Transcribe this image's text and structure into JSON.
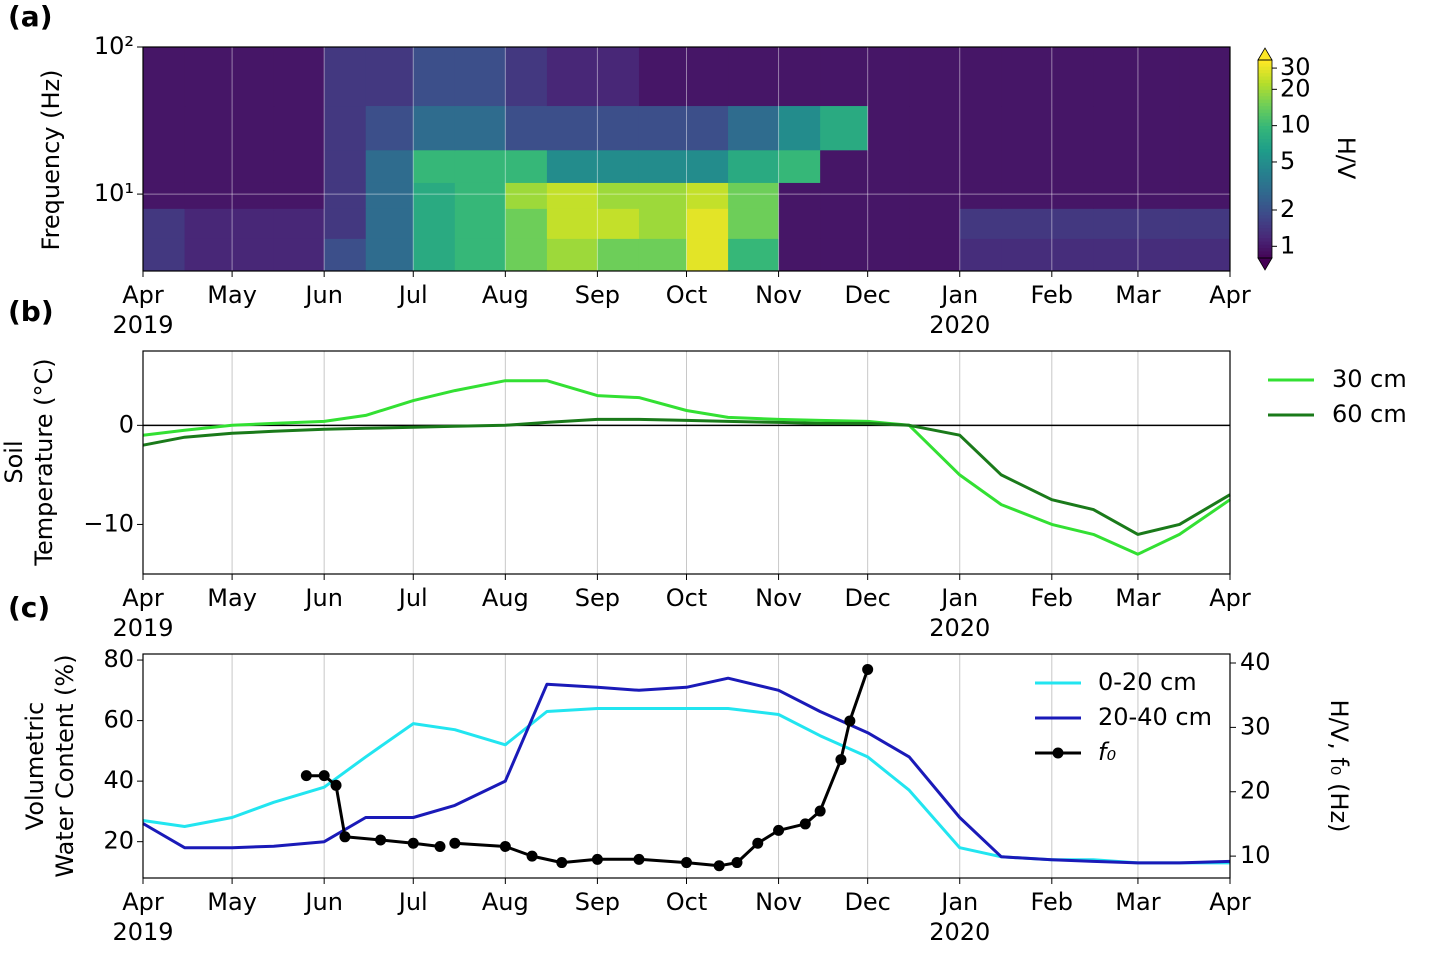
{
  "chart_data": [
    {
      "type": "heatmap",
      "panel_label": "(a)",
      "ylabel": "Frequency (Hz)",
      "xlim": [
        "2019-04-01",
        "2020-04-01"
      ],
      "xticks": [
        {
          "value": "2019-04-01",
          "label": "Apr"
        },
        {
          "value": "2019-05-01",
          "label": "May"
        },
        {
          "value": "2019-06-01",
          "label": "Jun"
        },
        {
          "value": "2019-07-01",
          "label": "Jul"
        },
        {
          "value": "2019-08-01",
          "label": "Aug"
        },
        {
          "value": "2019-09-01",
          "label": "Sep"
        },
        {
          "value": "2019-10-01",
          "label": "Oct"
        },
        {
          "value": "2019-11-01",
          "label": "Nov"
        },
        {
          "value": "2019-12-01",
          "label": "Dec"
        },
        {
          "value": "2020-01-01",
          "label": "Jan"
        },
        {
          "value": "2020-02-01",
          "label": "Feb"
        },
        {
          "value": "2020-03-01",
          "label": "Mar"
        },
        {
          "value": "2020-04-01",
          "label": "Apr"
        }
      ],
      "xtick_years": [
        {
          "value": "2019-04-01",
          "label": "2019"
        },
        {
          "value": "2020-01-01",
          "label": "2020"
        }
      ],
      "ylog": true,
      "ylim": [
        3,
        100
      ],
      "yticks": [
        {
          "value": 10,
          "label": "10¹"
        },
        {
          "value": 100,
          "label": "10²"
        }
      ],
      "grid": "both",
      "x_edges": [
        "2019-04-01",
        "2019-04-15",
        "2019-05-01",
        "2019-05-15",
        "2019-06-01",
        "2019-06-15",
        "2019-07-01",
        "2019-07-15",
        "2019-08-01",
        "2019-08-15",
        "2019-09-01",
        "2019-09-15",
        "2019-10-01",
        "2019-10-15",
        "2019-11-01",
        "2019-11-15",
        "2019-12-01",
        "2019-12-15",
        "2020-01-01",
        "2020-01-15",
        "2020-02-01",
        "2020-02-15",
        "2020-03-01",
        "2020-03-15",
        "2020-04-01"
      ],
      "y_edges": [
        3,
        5,
        8,
        12,
        20,
        40,
        100
      ],
      "z": [
        [
          1.5,
          1.2,
          1.2,
          1.2,
          2,
          3,
          8,
          10,
          15,
          20,
          15,
          15,
          30,
          10,
          1,
          1,
          1,
          1,
          1.3,
          1.3,
          1.3,
          1.3,
          1.3,
          1.3
        ],
        [
          1.5,
          1.2,
          1.2,
          1.2,
          1.5,
          3,
          8,
          10,
          15,
          25,
          25,
          20,
          30,
          15,
          1,
          1,
          1,
          1,
          1.5,
          1.5,
          1.5,
          1.5,
          1.5,
          1.5
        ],
        [
          1,
          1,
          1,
          1,
          1.5,
          3,
          8,
          10,
          20,
          25,
          20,
          20,
          25,
          15,
          1,
          1,
          1,
          1,
          1,
          1,
          1,
          1,
          1,
          1
        ],
        [
          1,
          1,
          1,
          1,
          1.5,
          3,
          10,
          10,
          10,
          5,
          5,
          5,
          5,
          8,
          10,
          1,
          1,
          1,
          1,
          1,
          1,
          1,
          1,
          1
        ],
        [
          1,
          1,
          1,
          1,
          1.5,
          2,
          3,
          3,
          2,
          2,
          2,
          2,
          2,
          3,
          5,
          8,
          1,
          1,
          1,
          1,
          1,
          1,
          1,
          1
        ],
        [
          1,
          1,
          1,
          1,
          1.5,
          1.5,
          2,
          2,
          1.5,
          1.2,
          1.2,
          1,
          1,
          1,
          1,
          1,
          1,
          1,
          1,
          1,
          1,
          1,
          1,
          1
        ]
      ],
      "colorbar": {
        "label": "H/V",
        "log": true,
        "lim": [
          0.8,
          35
        ],
        "ticks": [
          1,
          2,
          5,
          10,
          20,
          30
        ],
        "extend": "both",
        "colormap": "viridis"
      }
    },
    {
      "type": "line",
      "panel_label": "(b)",
      "ylabel": [
        "Soil",
        "Temperature (°C)"
      ],
      "xlim": [
        "2019-04-01",
        "2020-04-01"
      ],
      "xticks": [
        {
          "value": "2019-04-01",
          "label": "Apr"
        },
        {
          "value": "2019-05-01",
          "label": "May"
        },
        {
          "value": "2019-06-01",
          "label": "Jun"
        },
        {
          "value": "2019-07-01",
          "label": "Jul"
        },
        {
          "value": "2019-08-01",
          "label": "Aug"
        },
        {
          "value": "2019-09-01",
          "label": "Sep"
        },
        {
          "value": "2019-10-01",
          "label": "Oct"
        },
        {
          "value": "2019-11-01",
          "label": "Nov"
        },
        {
          "value": "2019-12-01",
          "label": "Dec"
        },
        {
          "value": "2020-01-01",
          "label": "Jan"
        },
        {
          "value": "2020-02-01",
          "label": "Feb"
        },
        {
          "value": "2020-03-01",
          "label": "Mar"
        },
        {
          "value": "2020-04-01",
          "label": "Apr"
        }
      ],
      "xtick_years": [
        {
          "value": "2019-04-01",
          "label": "2019"
        },
        {
          "value": "2020-01-01",
          "label": "2020"
        }
      ],
      "ylim": [
        -15,
        7.5
      ],
      "yticks": [
        {
          "value": -10,
          "label": "−10"
        },
        0
      ],
      "reference_line": 0,
      "grid": "x",
      "legend": "outside right",
      "x": [
        "2019-04-01",
        "2019-04-15",
        "2019-05-01",
        "2019-05-15",
        "2019-06-01",
        "2019-06-15",
        "2019-07-01",
        "2019-07-15",
        "2019-08-01",
        "2019-08-15",
        "2019-09-01",
        "2019-09-15",
        "2019-10-01",
        "2019-10-15",
        "2019-11-01",
        "2019-11-15",
        "2019-12-01",
        "2019-12-15",
        "2020-01-01",
        "2020-01-15",
        "2020-02-01",
        "2020-02-15",
        "2020-03-01",
        "2020-03-15",
        "2020-04-01"
      ],
      "series": [
        {
          "name": "30 cm",
          "color": "#33e033",
          "values": [
            -1,
            -0.5,
            0,
            0.2,
            0.4,
            1,
            2.5,
            3.5,
            4.5,
            4.5,
            3,
            2.8,
            1.5,
            0.8,
            0.6,
            0.5,
            0.4,
            0,
            -5,
            -8,
            -10,
            -11,
            -13,
            -11,
            -7.5
          ]
        },
        {
          "name": "60 cm",
          "color": "#1a7a1a",
          "values": [
            -2,
            -1.2,
            -0.8,
            -0.6,
            -0.4,
            -0.3,
            -0.2,
            -0.1,
            0,
            0.3,
            0.6,
            0.6,
            0.5,
            0.4,
            0.3,
            0.2,
            0.2,
            0,
            -1,
            -5,
            -7.5,
            -8.5,
            -11,
            -10,
            -7
          ]
        }
      ]
    },
    {
      "type": "line",
      "panel_label": "(c)",
      "ylabel": [
        "Volumetric",
        "Water Content (%)"
      ],
      "y2label": "H/V, f₀ (Hz)",
      "xlim": [
        "2019-04-01",
        "2020-04-01"
      ],
      "xticks": [
        {
          "value": "2019-04-01",
          "label": "Apr"
        },
        {
          "value": "2019-05-01",
          "label": "May"
        },
        {
          "value": "2019-06-01",
          "label": "Jun"
        },
        {
          "value": "2019-07-01",
          "label": "Jul"
        },
        {
          "value": "2019-08-01",
          "label": "Aug"
        },
        {
          "value": "2019-09-01",
          "label": "Sep"
        },
        {
          "value": "2019-10-01",
          "label": "Oct"
        },
        {
          "value": "2019-11-01",
          "label": "Nov"
        },
        {
          "value": "2019-12-01",
          "label": "Dec"
        },
        {
          "value": "2020-01-01",
          "label": "Jan"
        },
        {
          "value": "2020-02-01",
          "label": "Feb"
        },
        {
          "value": "2020-03-01",
          "label": "Mar"
        },
        {
          "value": "2020-04-01",
          "label": "Apr"
        }
      ],
      "xtick_years": [
        {
          "value": "2019-04-01",
          "label": "2019"
        },
        {
          "value": "2020-01-01",
          "label": "2020"
        }
      ],
      "ylim": [
        8,
        82
      ],
      "yticks": [
        20,
        40,
        60,
        80
      ],
      "y2lim": [
        6.6,
        41.4
      ],
      "y2ticks": [
        10,
        20,
        30,
        40
      ],
      "grid": "x",
      "legend": "upper right",
      "x": [
        "2019-04-01",
        "2019-04-15",
        "2019-05-01",
        "2019-05-15",
        "2019-06-01",
        "2019-06-15",
        "2019-07-01",
        "2019-07-15",
        "2019-08-01",
        "2019-08-15",
        "2019-09-01",
        "2019-09-15",
        "2019-10-01",
        "2019-10-15",
        "2019-11-01",
        "2019-11-15",
        "2019-12-01",
        "2019-12-15",
        "2020-01-01",
        "2020-01-15",
        "2020-02-01",
        "2020-02-15",
        "2020-03-01",
        "2020-03-15",
        "2020-04-01"
      ],
      "series": [
        {
          "name": "0-20 cm",
          "color": "#22e5f0",
          "values": [
            27,
            25,
            28,
            33,
            38,
            48,
            59,
            57,
            52,
            63,
            64,
            64,
            64,
            64,
            62,
            55,
            48,
            37,
            18,
            15,
            14,
            14,
            13,
            13,
            13
          ]
        },
        {
          "name": "20-40 cm",
          "color": "#1a1ab8",
          "values": [
            26,
            18,
            18,
            18.5,
            20,
            28,
            28,
            32,
            40,
            72,
            71,
            70,
            71,
            74,
            70,
            63,
            56,
            48,
            28,
            15,
            14,
            13.5,
            13,
            13,
            13.5
          ]
        },
        {
          "name": "f₀",
          "color": "#000000",
          "axis": "y2",
          "marker": "o",
          "x": [
            "2019-05-26",
            "2019-06-01",
            "2019-06-05",
            "2019-06-08",
            "2019-06-20",
            "2019-07-01",
            "2019-07-10",
            "2019-07-12",
            "2019-07-15",
            "2019-08-01",
            "2019-08-10",
            "2019-08-20",
            "2019-09-01",
            "2019-09-15",
            "2019-10-01",
            "2019-10-12",
            "2019-10-18",
            "2019-10-25",
            "2019-11-01",
            "2019-11-10",
            "2019-11-15",
            "2019-11-22",
            "2019-11-25",
            "2019-12-01"
          ],
          "values": [
            22.5,
            22.5,
            21,
            13,
            12.5,
            12,
            11.5,
            null,
            12,
            11.5,
            10,
            9,
            9.5,
            9.5,
            9,
            8.5,
            9,
            12,
            14,
            15,
            17,
            25,
            31,
            39
          ]
        }
      ]
    }
  ]
}
